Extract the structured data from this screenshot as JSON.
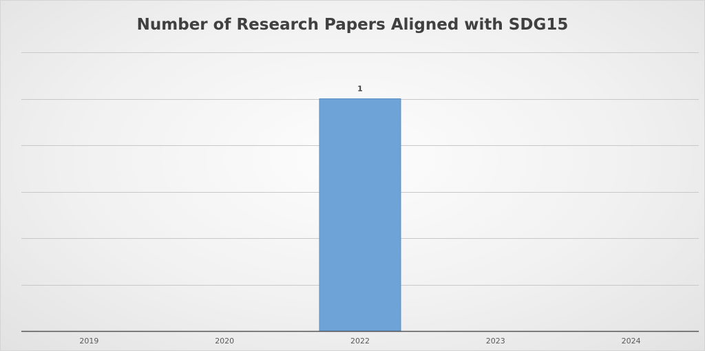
{
  "chart_data": {
    "type": "bar",
    "title": "Number of Research Papers Aligned with SDG15",
    "categories": [
      "2019",
      "2020",
      "2022",
      "2023",
      "2024"
    ],
    "values": [
      0,
      0,
      1,
      0,
      0
    ],
    "data_labels": [
      "",
      "",
      "1",
      "",
      ""
    ],
    "xlabel": "",
    "ylabel": "",
    "ylim": [
      0,
      1.2
    ],
    "grid": true,
    "gridlines": [
      0,
      0.2,
      0.4,
      0.6,
      0.8,
      1.0,
      1.2
    ],
    "legend": "none",
    "bar_color": "#6ea3d8",
    "bar_edge_color": "#5b8ec4",
    "grid_color": "#c8c8c8",
    "axis_color": "#555555"
  }
}
